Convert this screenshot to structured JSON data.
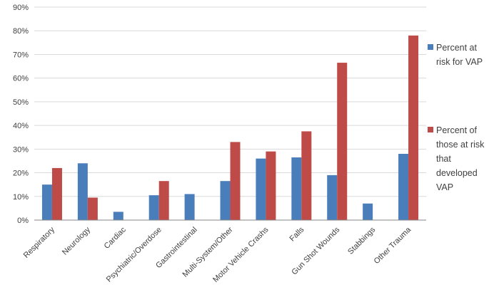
{
  "chart_data": {
    "type": "bar",
    "categories": [
      "Respiratory",
      "Neurology",
      "Cardiac",
      "Psychiatric/Overdose",
      "Gastrointestinal",
      "Multi-System/Other",
      "Motor Vehicle Crashs",
      "Falls",
      "Gun Shot Wounds",
      "Stabbings",
      "Other Trauma"
    ],
    "series": [
      {
        "name": "Percent at risk for VAP",
        "legend_lines": [
          "Percent at",
          "risk for VAP"
        ],
        "color": "#4a7ebb",
        "values": [
          15,
          24,
          3.5,
          10.5,
          11,
          16.5,
          26,
          26.5,
          19,
          7,
          28
        ]
      },
      {
        "name": "Percent of those at risk that developed VAP",
        "legend_lines": [
          "Percent of",
          "those at risk",
          "that",
          "developed",
          "VAP"
        ],
        "color": "#be4b48",
        "values": [
          22,
          9.5,
          null,
          16.5,
          null,
          33,
          29,
          37.5,
          66.5,
          null,
          78
        ]
      }
    ],
    "ylim": [
      0,
      90
    ],
    "yticks": [
      0,
      10,
      20,
      30,
      40,
      50,
      60,
      70,
      80,
      90
    ],
    "ytick_labels": [
      "0%",
      "10%",
      "20%",
      "30%",
      "40%",
      "50%",
      "60%",
      "70%",
      "80%",
      "90%"
    ],
    "grid": true,
    "legend_position": "right"
  }
}
